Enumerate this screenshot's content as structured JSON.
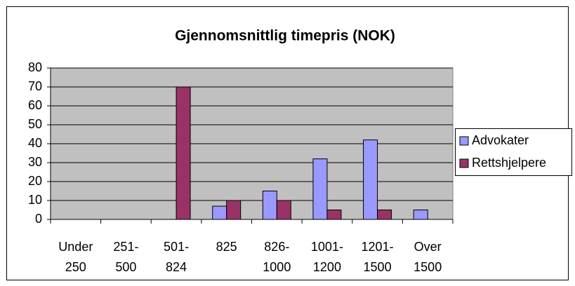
{
  "chart_data": {
    "type": "bar",
    "title": "Gjennomsnittlig timepris (NOK)",
    "categories": [
      [
        "Under",
        "250"
      ],
      [
        "251-",
        "500"
      ],
      [
        "501-",
        "824"
      ],
      [
        "825"
      ],
      [
        "826-",
        "1000"
      ],
      [
        "1001-",
        "1200"
      ],
      [
        "1201-",
        "1500"
      ],
      [
        "Over",
        "1500"
      ]
    ],
    "series": [
      {
        "name": "Advokater",
        "color": "#9999ff",
        "values": [
          0,
          0,
          0,
          7,
          15,
          32,
          42,
          5
        ]
      },
      {
        "name": "Rettshjelpere",
        "color": "#993366",
        "values": [
          0,
          0,
          70,
          10,
          10,
          5,
          5,
          0
        ]
      }
    ],
    "ylim": [
      0,
      80
    ],
    "yticks": [
      0,
      10,
      20,
      30,
      40,
      50,
      60,
      70,
      80
    ],
    "grid": true,
    "legend": "right"
  }
}
